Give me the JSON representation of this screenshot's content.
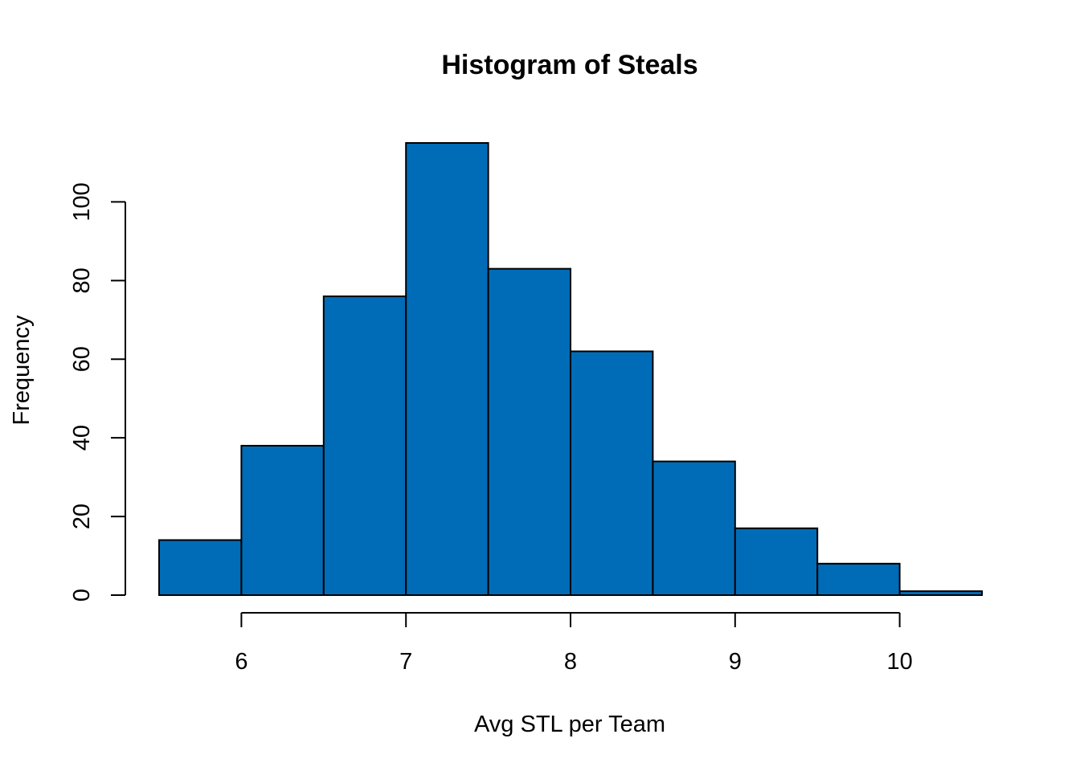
{
  "chart_data": {
    "type": "bar",
    "title": "Histogram of Steals",
    "xlabel": "Avg STL per Team",
    "ylabel": "Frequency",
    "bins": [
      {
        "x0": 5.5,
        "x1": 6.0,
        "count": 14
      },
      {
        "x0": 6.0,
        "x1": 6.5,
        "count": 38
      },
      {
        "x0": 6.5,
        "x1": 7.0,
        "count": 76
      },
      {
        "x0": 7.0,
        "x1": 7.5,
        "count": 115
      },
      {
        "x0": 7.5,
        "x1": 8.0,
        "count": 83
      },
      {
        "x0": 8.0,
        "x1": 8.5,
        "count": 62
      },
      {
        "x0": 8.5,
        "x1": 9.0,
        "count": 34
      },
      {
        "x0": 9.0,
        "x1": 9.5,
        "count": 17
      },
      {
        "x0": 9.5,
        "x1": 10.0,
        "count": 8
      },
      {
        "x0": 10.0,
        "x1": 10.5,
        "count": 1
      }
    ],
    "x_ticks": [
      6,
      7,
      8,
      9,
      10
    ],
    "y_ticks": [
      0,
      20,
      40,
      60,
      80,
      100
    ],
    "xlim": [
      5.5,
      10.5
    ],
    "ylim": [
      0,
      115
    ],
    "bar_color": "#006cb7",
    "grid": false
  }
}
